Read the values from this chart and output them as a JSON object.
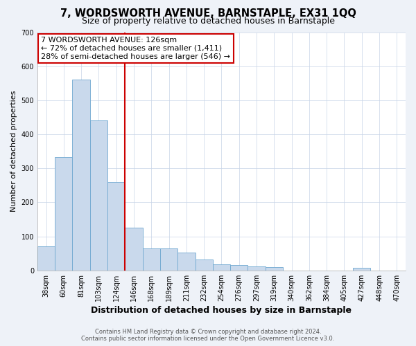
{
  "title": "7, WORDSWORTH AVENUE, BARNSTAPLE, EX31 1QQ",
  "subtitle": "Size of property relative to detached houses in Barnstaple",
  "xlabel": "Distribution of detached houses by size in Barnstaple",
  "ylabel": "Number of detached properties",
  "bar_labels": [
    "38sqm",
    "60sqm",
    "81sqm",
    "103sqm",
    "124sqm",
    "146sqm",
    "168sqm",
    "189sqm",
    "211sqm",
    "232sqm",
    "254sqm",
    "276sqm",
    "297sqm",
    "319sqm",
    "340sqm",
    "362sqm",
    "384sqm",
    "405sqm",
    "427sqm",
    "448sqm",
    "470sqm"
  ],
  "bar_values": [
    70,
    333,
    560,
    441,
    260,
    125,
    65,
    65,
    52,
    33,
    18,
    15,
    12,
    10,
    0,
    0,
    0,
    0,
    7,
    0,
    0
  ],
  "bar_color": "#c9d9ec",
  "bar_edge_color": "#6fa8d0",
  "vline_index": 4,
  "vline_color": "#cc0000",
  "annotation_text": "7 WORDSWORTH AVENUE: 126sqm\n← 72% of detached houses are smaller (1,411)\n28% of semi-detached houses are larger (546) →",
  "annotation_box_color": "#ffffff",
  "annotation_box_edge_color": "#cc0000",
  "ylim": [
    0,
    700
  ],
  "yticks": [
    0,
    100,
    200,
    300,
    400,
    500,
    600,
    700
  ],
  "footer_line1": "Contains HM Land Registry data © Crown copyright and database right 2024.",
  "footer_line2": "Contains public sector information licensed under the Open Government Licence v3.0.",
  "title_fontsize": 10.5,
  "subtitle_fontsize": 9,
  "xlabel_fontsize": 9,
  "ylabel_fontsize": 8,
  "tick_fontsize": 7,
  "annotation_fontsize": 8,
  "footer_fontsize": 6,
  "background_color": "#eef2f8",
  "plot_background": "#ffffff",
  "grid_color": "#c8d4e8"
}
